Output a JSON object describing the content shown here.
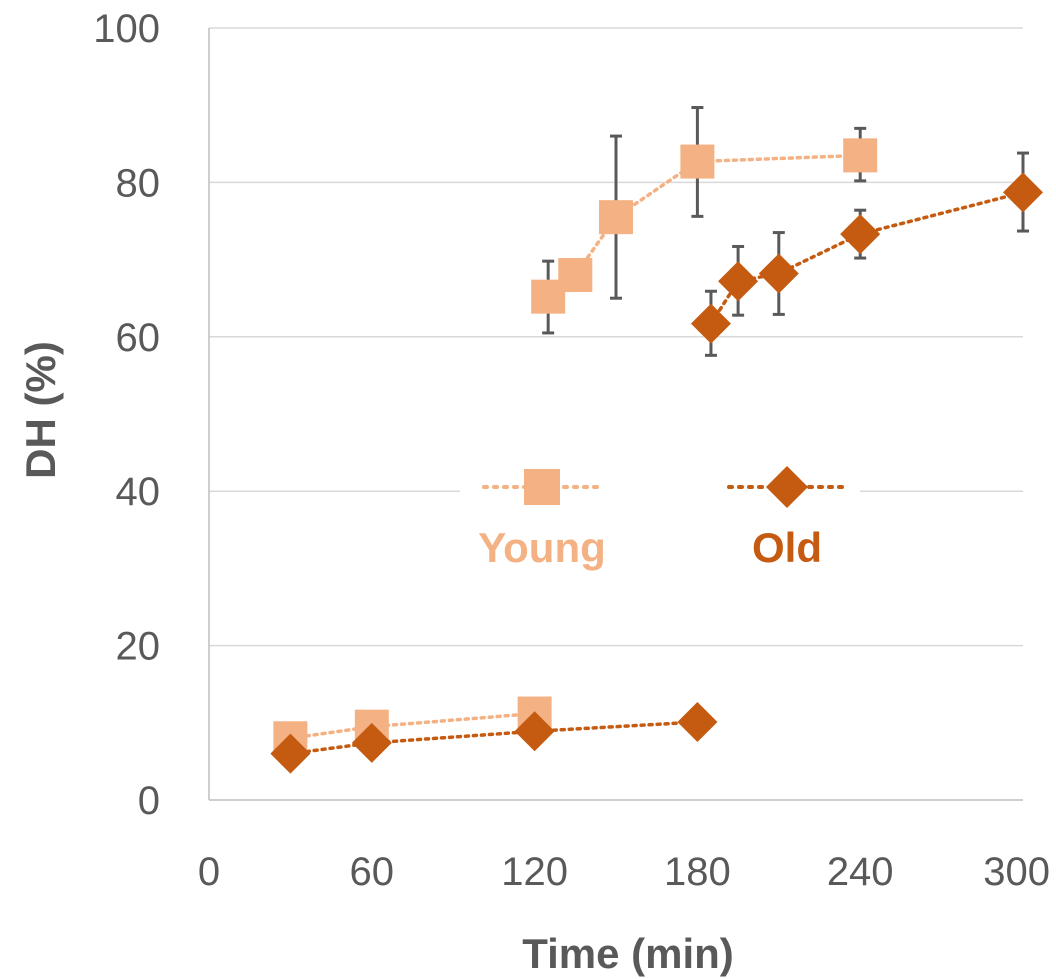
{
  "chart_data": {
    "type": "scatter",
    "title": "",
    "xlabel": "Time (min)",
    "ylabel": "DH (%)",
    "xlim": [
      0,
      300
    ],
    "ylim": [
      0,
      100
    ],
    "xticks": [
      0,
      60,
      120,
      180,
      240,
      300
    ],
    "yticks": [
      0,
      20,
      40,
      60,
      80,
      100
    ],
    "grid": "horizontal",
    "legend": "center",
    "series": [
      {
        "name": "Young",
        "color": "#F4B183",
        "marker": "square",
        "line": "dotted",
        "segments": [
          {
            "points": [
              {
                "x": 30,
                "y": 8
              },
              {
                "x": 60,
                "y": 9.5
              },
              {
                "x": 120,
                "y": 11.2
              }
            ]
          },
          {
            "points": [
              {
                "x": 125,
                "y": 65.2,
                "err_low": 60.5,
                "err_high": 69.8
              },
              {
                "x": 135,
                "y": 68
              },
              {
                "x": 150,
                "y": 75.5,
                "err_low": 65,
                "err_high": 86
              },
              {
                "x": 180,
                "y": 82.7,
                "err_low": 75.6,
                "err_high": 89.7
              },
              {
                "x": 240,
                "y": 83.5,
                "err_low": 80.2,
                "err_high": 87
              }
            ]
          }
        ]
      },
      {
        "name": "Old",
        "color": "#C55A11",
        "marker": "diamond",
        "line": "dotted",
        "segments": [
          {
            "points": [
              {
                "x": 30,
                "y": 6
              },
              {
                "x": 60,
                "y": 7.4
              },
              {
                "x": 120,
                "y": 8.9
              },
              {
                "x": 180,
                "y": 10.1
              }
            ]
          },
          {
            "points": [
              {
                "x": 185,
                "y": 61.7,
                "err_low": 57.6,
                "err_high": 65.9
              },
              {
                "x": 195,
                "y": 67.2,
                "err_low": 62.8,
                "err_high": 71.7
              },
              {
                "x": 210,
                "y": 68.2,
                "err_low": 62.9,
                "err_high": 73.5
              },
              {
                "x": 240,
                "y": 73.3,
                "err_low": 70.2,
                "err_high": 76.4
              },
              {
                "x": 300,
                "y": 78.7,
                "err_low": 73.7,
                "err_high": 83.8
              }
            ]
          }
        ]
      }
    ]
  }
}
